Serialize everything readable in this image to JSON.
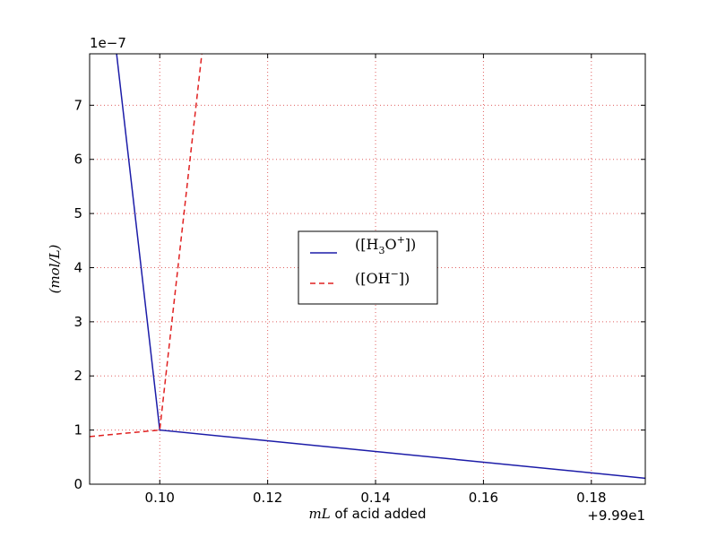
{
  "chart_data": {
    "type": "line",
    "title": "",
    "xlabel_math": "mL",
    "xlabel_text": " of acid added",
    "ylabel": "(mol/L)",
    "x_offset_label": "+9.99e1",
    "y_scale_label": "1e−7",
    "xlim": [
      0.087,
      0.19
    ],
    "ylim": [
      0,
      7.95
    ],
    "x_ticks": [
      0.1,
      0.12,
      0.14,
      0.16,
      0.18
    ],
    "x_tick_labels": [
      "0.10",
      "0.12",
      "0.14",
      "0.16",
      "0.18"
    ],
    "y_ticks": [
      0,
      1,
      2,
      3,
      4,
      5,
      6,
      7
    ],
    "y_tick_labels": [
      "0",
      "1",
      "2",
      "3",
      "4",
      "5",
      "6",
      "7"
    ],
    "grid": true,
    "legend_position": "center",
    "series": [
      {
        "legend_prefix": "([H",
        "legend_sub": "3",
        "legend_mid": "O",
        "legend_sup": "+",
        "legend_suffix": "])",
        "color": "#1c1ca8",
        "style": "solid",
        "x": [
          0.092,
          0.1,
          0.19
        ],
        "y": [
          7.95,
          1.0,
          0.11
        ]
      },
      {
        "legend_prefix": "([OH",
        "legend_sub": "",
        "legend_mid": "",
        "legend_sup": "−",
        "legend_suffix": "])",
        "color": "#e02020",
        "style": "dashed",
        "x": [
          0.087,
          0.1,
          0.1078
        ],
        "y": [
          0.88,
          1.0,
          7.95
        ]
      }
    ]
  }
}
